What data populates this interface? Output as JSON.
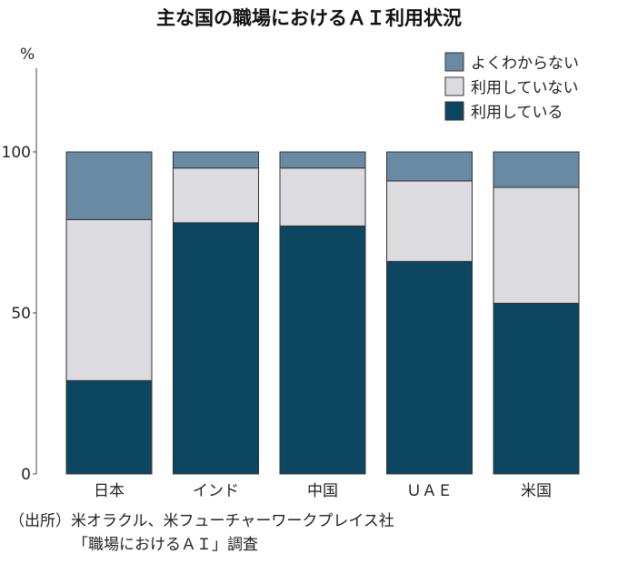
{
  "chart_data": {
    "type": "bar",
    "stacked": true,
    "title": "主な国の職場におけるＡＩ利用状況",
    "ylabel": "%",
    "ylim": [
      0,
      100
    ],
    "yticks": [
      0,
      50,
      100
    ],
    "grid": false,
    "legend_position": "top-right",
    "categories": [
      "日本",
      "インド",
      "中国",
      "ＵＡＥ",
      "米国"
    ],
    "series": [
      {
        "name": "利用している",
        "color": "#0c4660",
        "values": [
          29,
          78,
          77,
          66,
          53
        ]
      },
      {
        "name": "利用していない",
        "color": "#dcdbe0",
        "values": [
          50,
          17,
          18,
          25,
          36
        ]
      },
      {
        "name": "よくわからない",
        "color": "#6a8aa3",
        "values": [
          21,
          5,
          5,
          9,
          11
        ]
      }
    ]
  },
  "source": {
    "line1": "（出所）米オラクル、米フューチャーワークプレイス社",
    "line2": "「職場におけるＡＩ」調査"
  }
}
